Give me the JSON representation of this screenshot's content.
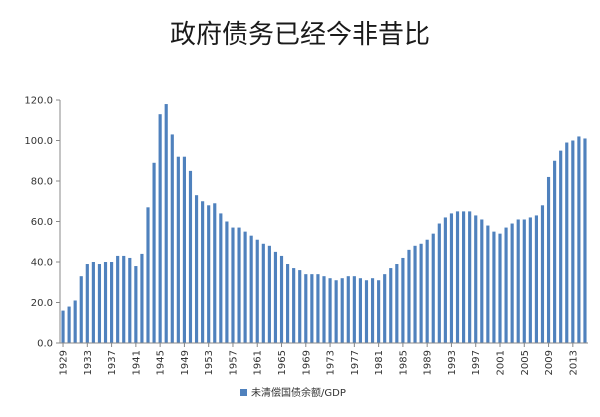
{
  "chart_data": {
    "type": "bar",
    "title": "政府债务已经今非昔比",
    "xlabel": "",
    "ylabel": "",
    "ylim": [
      0,
      120
    ],
    "yticks": [
      "0.0",
      "20.0",
      "40.0",
      "60.0",
      "80.0",
      "100.0",
      "120.0"
    ],
    "xtick_labels": [
      "1929",
      "1933",
      "1937",
      "1941",
      "1945",
      "1949",
      "1953",
      "1957",
      "1961",
      "1965",
      "1969",
      "1973",
      "1977",
      "1981",
      "1985",
      "1989",
      "1993",
      "1997",
      "2001",
      "2005",
      "2009",
      "2013"
    ],
    "grid": false,
    "legend_position": "bottom",
    "bar_color": "#4F81BD",
    "categories": [
      "1929",
      "1930",
      "1931",
      "1932",
      "1933",
      "1934",
      "1935",
      "1936",
      "1937",
      "1938",
      "1939",
      "1940",
      "1941",
      "1942",
      "1943",
      "1944",
      "1945",
      "1946",
      "1947",
      "1948",
      "1949",
      "1950",
      "1951",
      "1952",
      "1953",
      "1954",
      "1955",
      "1956",
      "1957",
      "1958",
      "1959",
      "1960",
      "1961",
      "1962",
      "1963",
      "1964",
      "1965",
      "1966",
      "1967",
      "1968",
      "1969",
      "1970",
      "1971",
      "1972",
      "1973",
      "1974",
      "1975",
      "1976",
      "1977",
      "1978",
      "1979",
      "1980",
      "1981",
      "1982",
      "1983",
      "1984",
      "1985",
      "1986",
      "1987",
      "1988",
      "1989",
      "1990",
      "1991",
      "1992",
      "1993",
      "1994",
      "1995",
      "1996",
      "1997",
      "1998",
      "1999",
      "2000",
      "2001",
      "2002",
      "2003",
      "2004",
      "2005",
      "2006",
      "2007",
      "2008",
      "2009",
      "2010",
      "2011",
      "2012",
      "2013",
      "2014",
      "2015"
    ],
    "series": [
      {
        "name": "未清偿国债余额/GDP",
        "values": [
          16,
          18,
          21,
          33,
          39,
          40,
          39,
          40,
          40,
          43,
          43,
          42,
          38,
          44,
          67,
          89,
          113,
          118,
          103,
          92,
          92,
          85,
          73,
          70,
          68,
          69,
          64,
          60,
          57,
          57,
          55,
          53,
          51,
          49,
          48,
          45,
          43,
          39,
          37,
          36,
          34,
          34,
          34,
          33,
          32,
          31,
          32,
          33,
          33,
          32,
          31,
          32,
          31,
          34,
          37,
          39,
          42,
          46,
          48,
          49,
          51,
          54,
          59,
          62,
          64,
          65,
          65,
          65,
          63,
          61,
          58,
          55,
          54,
          57,
          59,
          61,
          61,
          62,
          63,
          68,
          82,
          90,
          95,
          99,
          100,
          102,
          101
        ]
      }
    ]
  }
}
